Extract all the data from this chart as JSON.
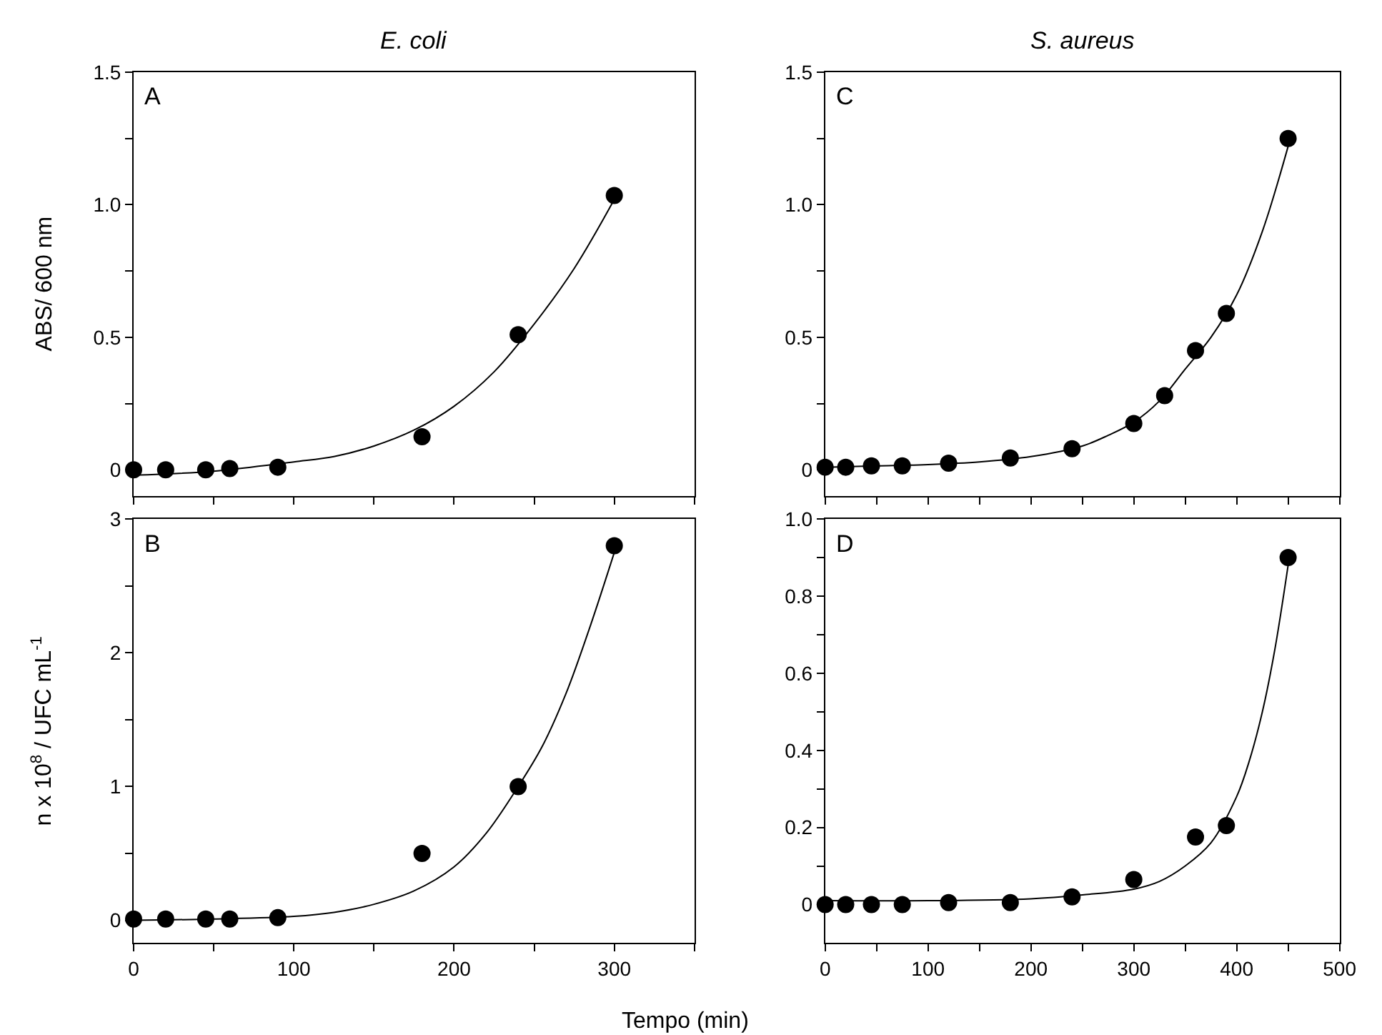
{
  "chart_data": [
    {
      "type": "scatter",
      "title": "E. coli",
      "ylabel": "ABS/ 600 nm",
      "annotations": [
        "A"
      ],
      "tick_labels": "y",
      "xlim": [
        0,
        350
      ],
      "xticks": [
        {
          "value": 0,
          "label": null
        },
        {
          "value": 50,
          "label": null
        },
        {
          "value": 100,
          "label": null
        },
        {
          "value": 150,
          "label": null
        },
        {
          "value": 200,
          "label": null
        },
        {
          "value": 250,
          "label": null
        },
        {
          "value": 300,
          "label": null
        },
        {
          "value": 350,
          "label": null
        }
      ],
      "ylim": [
        -0.1,
        1.5
      ],
      "yticks": [
        {
          "value": 0,
          "label": "0"
        },
        {
          "value": 0.25,
          "label": null
        },
        0.5,
        {
          "value": 0.75,
          "label": null
        },
        {
          "value": 1,
          "label": "1.0"
        },
        {
          "value": 1.25,
          "label": null
        },
        1.5
      ],
      "series": [
        {
          "marker": "circle",
          "color": "#000000",
          "x": [
            0,
            20,
            45,
            60,
            90,
            180,
            240,
            300
          ],
          "values": [
            0.0,
            0.0,
            0.0,
            0.005,
            0.01,
            0.125,
            0.51,
            1.035
          ]
        },
        {
          "type": "line",
          "marker": "none",
          "color": "#000000",
          "line_style": "solid",
          "x": [
            0,
            50,
            100,
            125,
            150,
            175,
            200,
            225,
            250,
            275,
            300
          ],
          "values": [
            -0.02,
            -0.005,
            0.03,
            0.05,
            0.09,
            0.15,
            0.24,
            0.37,
            0.55,
            0.76,
            1.02
          ]
        }
      ]
    },
    {
      "type": "scatter",
      "title": "S. aureus",
      "annotations": [
        "C"
      ],
      "tick_labels": "y",
      "xlim": [
        0,
        500
      ],
      "xticks": [
        {
          "value": 0,
          "label": null
        },
        {
          "value": 50,
          "label": null
        },
        {
          "value": 100,
          "label": null
        },
        {
          "value": 150,
          "label": null
        },
        {
          "value": 200,
          "label": null
        },
        {
          "value": 250,
          "label": null
        },
        {
          "value": 300,
          "label": null
        },
        {
          "value": 350,
          "label": null
        },
        {
          "value": 400,
          "label": null
        },
        {
          "value": 450,
          "label": null
        },
        {
          "value": 500,
          "label": null
        }
      ],
      "ylim": [
        -0.1,
        1.5
      ],
      "yticks": [
        {
          "value": 0,
          "label": "0"
        },
        {
          "value": 0.25,
          "label": null
        },
        0.5,
        {
          "value": 0.75,
          "label": null
        },
        {
          "value": 1,
          "label": "1.0"
        },
        {
          "value": 1.25,
          "label": null
        },
        1.5
      ],
      "series": [
        {
          "marker": "circle",
          "color": "#000000",
          "x": [
            0,
            20,
            45,
            75,
            120,
            180,
            240,
            300,
            330,
            360,
            390,
            450
          ],
          "values": [
            0.01,
            0.01,
            0.015,
            0.015,
            0.025,
            0.045,
            0.08,
            0.175,
            0.28,
            0.45,
            0.59,
            1.25
          ]
        },
        {
          "type": "line",
          "marker": "none",
          "color": "#000000",
          "line_style": "solid",
          "x": [
            0,
            50,
            100,
            150,
            200,
            250,
            275,
            300,
            325,
            350,
            375,
            400,
            425,
            450
          ],
          "values": [
            0.01,
            0.015,
            0.02,
            0.03,
            0.05,
            0.09,
            0.13,
            0.18,
            0.26,
            0.38,
            0.5,
            0.66,
            0.9,
            1.22
          ]
        }
      ]
    },
    {
      "type": "scatter",
      "ylabel": "n x 10$^{8}$ / UFC mL$^{-1}$",
      "annotations": [
        "B"
      ],
      "xlim": [
        0,
        350
      ],
      "xticks": [
        0,
        {
          "value": 50,
          "label": null
        },
        100,
        {
          "value": 150,
          "label": null
        },
        200,
        {
          "value": 250,
          "label": null
        },
        300,
        {
          "value": 350,
          "label": null
        }
      ],
      "ylim": [
        -0.17,
        3
      ],
      "yticks": [
        0,
        {
          "value": 0.5,
          "label": null
        },
        1,
        {
          "value": 1.5,
          "label": null
        },
        2,
        {
          "value": 2.5,
          "label": null
        },
        3
      ],
      "series": [
        {
          "marker": "circle",
          "color": "#000000",
          "x": [
            0,
            20,
            45,
            60,
            90,
            180,
            240,
            300
          ],
          "values": [
            0.01,
            0.01,
            0.01,
            0.01,
            0.02,
            0.5,
            1.0,
            2.8
          ]
        },
        {
          "type": "line",
          "marker": "none",
          "color": "#000000",
          "line_style": "solid",
          "x": [
            0,
            50,
            100,
            125,
            150,
            175,
            200,
            220,
            240,
            255,
            270,
            285,
            300
          ],
          "values": [
            0.0,
            0.01,
            0.03,
            0.06,
            0.12,
            0.22,
            0.4,
            0.65,
            1.0,
            1.3,
            1.7,
            2.2,
            2.75
          ]
        }
      ]
    },
    {
      "type": "scatter",
      "xlabel": "Tempo (min)",
      "annotations": [
        "D"
      ],
      "xlim": [
        0,
        500
      ],
      "xticks": [
        0,
        {
          "value": 50,
          "label": null
        },
        100,
        {
          "value": 150,
          "label": null
        },
        200,
        {
          "value": 250,
          "label": null
        },
        300,
        {
          "value": 350,
          "label": null
        },
        400,
        {
          "value": 450,
          "label": null
        },
        500
      ],
      "ylim": [
        -0.1,
        1.0
      ],
      "yticks": [
        {
          "value": 0,
          "label": "0"
        },
        {
          "value": 0.1,
          "label": null
        },
        0.2,
        {
          "value": 0.3,
          "label": null
        },
        0.4,
        {
          "value": 0.5,
          "label": null
        },
        0.6,
        {
          "value": 0.7,
          "label": null
        },
        0.8,
        {
          "value": 0.9,
          "label": null
        },
        {
          "value": 1.0,
          "label": "1.0"
        }
      ],
      "series": [
        {
          "marker": "circle",
          "color": "#000000",
          "x": [
            0,
            20,
            45,
            75,
            120,
            180,
            240,
            300,
            360,
            390,
            450
          ],
          "values": [
            0.0,
            0.0,
            0.0,
            0.0,
            0.005,
            0.005,
            0.02,
            0.065,
            0.175,
            0.205,
            0.9
          ]
        },
        {
          "type": "line",
          "marker": "none",
          "color": "#000000",
          "line_style": "solid",
          "x": [
            0,
            100,
            200,
            250,
            300,
            325,
            350,
            375,
            400,
            412,
            425,
            437,
            450
          ],
          "values": [
            0.01,
            0.01,
            0.015,
            0.025,
            0.04,
            0.06,
            0.1,
            0.16,
            0.28,
            0.37,
            0.5,
            0.66,
            0.88
          ]
        }
      ]
    }
  ]
}
